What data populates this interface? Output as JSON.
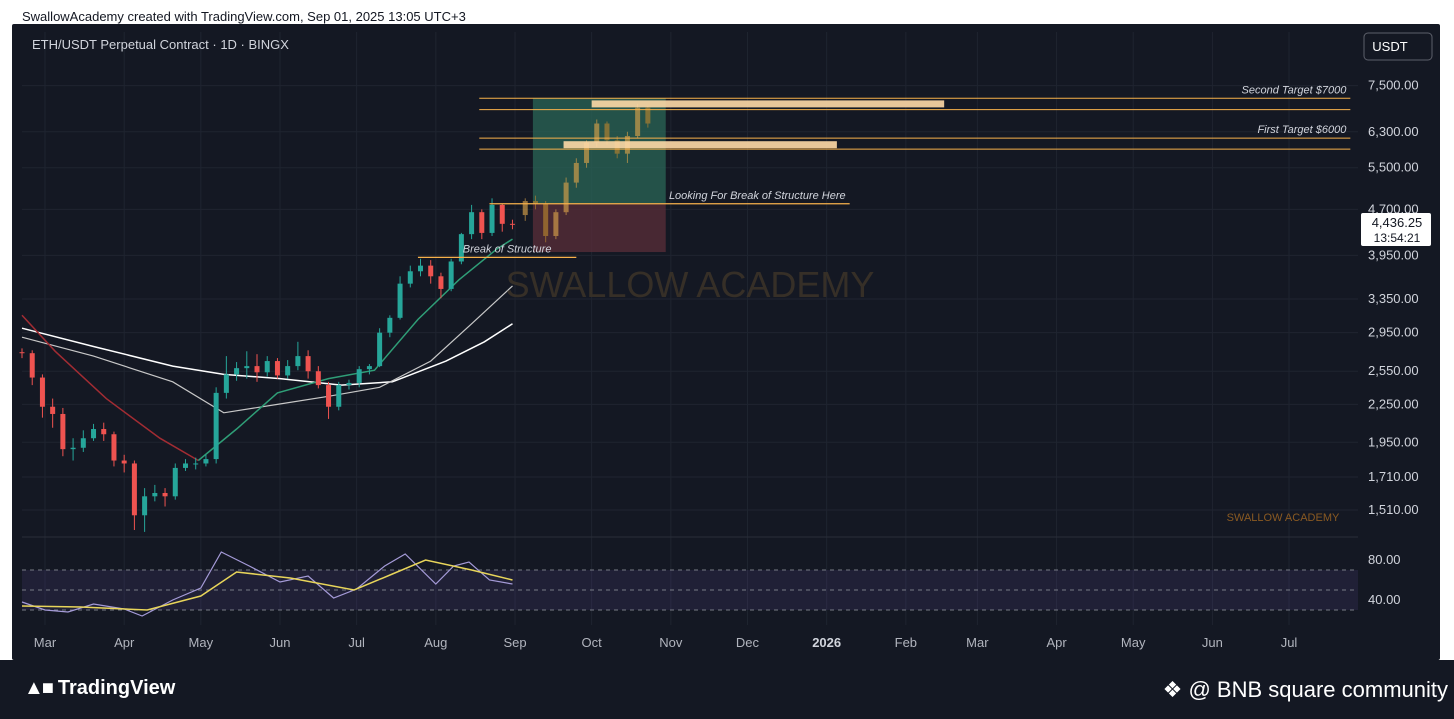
{
  "header": {
    "credit": "SwallowAcademy created with TradingView.com, Sep 01, 2025 13:05 UTC+3"
  },
  "chart_data": {
    "type": "candlestick",
    "title": "ETH/USDT Perpetual Contract · 1D · BINGX",
    "currency": "USDT",
    "y_scale": "log",
    "ylim": [
      1400,
      8200
    ],
    "y_ticks": [
      "7,500.00",
      "6,300.00",
      "5,500.00",
      "4,700.00",
      "3,950.00",
      "3,350.00",
      "2,950.00",
      "2,550.00",
      "2,250.00",
      "1,950.00",
      "1,710.00",
      "1,510.00"
    ],
    "x_ticks": [
      "Mar",
      "Apr",
      "May",
      "Jun",
      "Jul",
      "Aug",
      "Sep",
      "Oct",
      "Nov",
      "Dec",
      "2026",
      "Feb",
      "Mar",
      "Apr",
      "May",
      "Jun",
      "Jul"
    ],
    "x_range": [
      "2025-02-20",
      "2026-07-28"
    ],
    "last_price": "4,436.25",
    "countdown": "13:54:21",
    "watermark": "SWALLOW ACADEMY",
    "watermark_small": "SWALLOW ACADEMY",
    "candles": [
      [
        "2025-02-20",
        2740,
        2780,
        2680,
        2730
      ],
      [
        "2025-02-24",
        2730,
        2760,
        2420,
        2490
      ],
      [
        "2025-02-28",
        2490,
        2520,
        2140,
        2230
      ],
      [
        "2025-03-04",
        2230,
        2300,
        2060,
        2170
      ],
      [
        "2025-03-08",
        2170,
        2220,
        1850,
        1900
      ],
      [
        "2025-03-12",
        1900,
        1980,
        1820,
        1910
      ],
      [
        "2025-03-16",
        1910,
        2040,
        1880,
        1980
      ],
      [
        "2025-03-20",
        1980,
        2090,
        1960,
        2050
      ],
      [
        "2025-03-24",
        2050,
        2100,
        1960,
        2010
      ],
      [
        "2025-03-28",
        2010,
        2030,
        1780,
        1820
      ],
      [
        "2025-04-01",
        1820,
        1860,
        1740,
        1800
      ],
      [
        "2025-04-05",
        1800,
        1820,
        1400,
        1480
      ],
      [
        "2025-04-09",
        1480,
        1640,
        1390,
        1590
      ],
      [
        "2025-04-13",
        1590,
        1660,
        1560,
        1610
      ],
      [
        "2025-04-17",
        1610,
        1640,
        1530,
        1590
      ],
      [
        "2025-04-21",
        1590,
        1800,
        1570,
        1770
      ],
      [
        "2025-04-25",
        1770,
        1830,
        1750,
        1800
      ],
      [
        "2025-04-29",
        1800,
        1840,
        1760,
        1800
      ],
      [
        "2025-05-03",
        1800,
        1860,
        1780,
        1830
      ],
      [
        "2025-05-07",
        1830,
        2400,
        1800,
        2350
      ],
      [
        "2025-05-11",
        2350,
        2700,
        2300,
        2520
      ],
      [
        "2025-05-15",
        2520,
        2640,
        2460,
        2580
      ],
      [
        "2025-05-19",
        2580,
        2750,
        2480,
        2600
      ],
      [
        "2025-05-23",
        2600,
        2720,
        2450,
        2540
      ],
      [
        "2025-05-27",
        2540,
        2700,
        2500,
        2650
      ],
      [
        "2025-05-31",
        2650,
        2680,
        2480,
        2510
      ],
      [
        "2025-06-04",
        2510,
        2660,
        2480,
        2600
      ],
      [
        "2025-06-08",
        2600,
        2850,
        2560,
        2700
      ],
      [
        "2025-06-12",
        2700,
        2760,
        2480,
        2550
      ],
      [
        "2025-06-16",
        2550,
        2600,
        2390,
        2420
      ],
      [
        "2025-06-20",
        2420,
        2450,
        2130,
        2230
      ],
      [
        "2025-06-24",
        2230,
        2450,
        2200,
        2420
      ],
      [
        "2025-06-28",
        2420,
        2470,
        2380,
        2440
      ],
      [
        "2025-07-02",
        2440,
        2600,
        2400,
        2570
      ],
      [
        "2025-07-06",
        2570,
        2620,
        2520,
        2600
      ],
      [
        "2025-07-10",
        2600,
        3000,
        2590,
        2950
      ],
      [
        "2025-07-14",
        2950,
        3150,
        2900,
        3120
      ],
      [
        "2025-07-18",
        3120,
        3650,
        3100,
        3550
      ],
      [
        "2025-07-22",
        3550,
        3800,
        3500,
        3720
      ],
      [
        "2025-07-26",
        3720,
        3900,
        3650,
        3800
      ],
      [
        "2025-07-30",
        3800,
        3880,
        3550,
        3650
      ],
      [
        "2025-08-03",
        3650,
        3700,
        3360,
        3480
      ],
      [
        "2025-08-07",
        3480,
        3900,
        3450,
        3860
      ],
      [
        "2025-08-11",
        3860,
        4300,
        3820,
        4280
      ],
      [
        "2025-08-15",
        4280,
        4780,
        4200,
        4650
      ],
      [
        "2025-08-19",
        4650,
        4700,
        4200,
        4300
      ],
      [
        "2025-08-23",
        4300,
        4900,
        4250,
        4780
      ],
      [
        "2025-08-27",
        4780,
        4800,
        4320,
        4450
      ],
      [
        "2025-08-31",
        4450,
        4520,
        4360,
        4436
      ]
    ],
    "ma_short": [
      [
        "2025-02-20",
        3150
      ],
      [
        "2025-03-05",
        2750
      ],
      [
        "2025-03-25",
        2300
      ],
      [
        "2025-04-15",
        1980
      ],
      [
        "2025-04-30",
        1820
      ],
      [
        "2025-05-15",
        2050
      ],
      [
        "2025-05-31",
        2350
      ],
      [
        "2025-06-20",
        2480
      ],
      [
        "2025-07-08",
        2560
      ],
      [
        "2025-07-25",
        3100
      ],
      [
        "2025-08-10",
        3600
      ],
      [
        "2025-08-25",
        4050
      ],
      [
        "2025-08-31",
        4200
      ]
    ],
    "ma_mid": [
      [
        "2025-02-20",
        2900
      ],
      [
        "2025-03-20",
        2700
      ],
      [
        "2025-04-20",
        2450
      ],
      [
        "2025-05-10",
        2180
      ],
      [
        "2025-05-31",
        2250
      ],
      [
        "2025-06-20",
        2320
      ],
      [
        "2025-07-10",
        2400
      ],
      [
        "2025-07-30",
        2650
      ],
      [
        "2025-08-15",
        3050
      ],
      [
        "2025-08-31",
        3520
      ]
    ],
    "ma_long": [
      [
        "2025-02-20",
        3000
      ],
      [
        "2025-03-20",
        2800
      ],
      [
        "2025-04-20",
        2600
      ],
      [
        "2025-05-10",
        2520
      ],
      [
        "2025-06-01",
        2480
      ],
      [
        "2025-06-25",
        2420
      ],
      [
        "2025-07-15",
        2450
      ],
      [
        "2025-08-05",
        2650
      ],
      [
        "2025-08-20",
        2850
      ],
      [
        "2025-08-31",
        3050
      ]
    ],
    "annotations": [
      {
        "text": "Second Target $7000",
        "value": 7000,
        "band": [
          6850,
          7150
        ],
        "x_start": "2025-08-18",
        "x_end": "2026-07-25"
      },
      {
        "text": "First Target $6000",
        "value": 6000,
        "band": [
          5900,
          6150
        ],
        "x_start": "2025-08-18",
        "x_end": "2026-07-25"
      },
      {
        "text": "Looking For Break of Structure Here",
        "value": 4800,
        "x_start": "2025-08-22",
        "x_end": "2026-01-10"
      },
      {
        "text": "Break of Structure",
        "value": 3920,
        "x_start": "2025-07-25",
        "x_end": "2025-09-25"
      }
    ],
    "position": {
      "x_start": "2025-09-08",
      "x_end": "2025-10-30",
      "entry": 4800,
      "target": 7150,
      "stop": 4000
    },
    "projection": [
      [
        "2025-09-05",
        4600,
        4900,
        4500,
        4850
      ],
      [
        "2025-09-09",
        4850,
        4950,
        4700,
        4800
      ],
      [
        "2025-09-13",
        4800,
        4850,
        4150,
        4250
      ],
      [
        "2025-09-17",
        4250,
        4700,
        4200,
        4650
      ],
      [
        "2025-09-21",
        4650,
        5300,
        4600,
        5200
      ],
      [
        "2025-09-25",
        5200,
        5700,
        5100,
        5600
      ],
      [
        "2025-09-29",
        5600,
        6100,
        5500,
        6050
      ],
      [
        "2025-10-03",
        6050,
        6600,
        5950,
        6500
      ],
      [
        "2025-10-07",
        6500,
        6550,
        6000,
        6100
      ],
      [
        "2025-10-11",
        6100,
        6200,
        5700,
        5800
      ],
      [
        "2025-10-15",
        5800,
        6300,
        5600,
        6200
      ],
      [
        "2025-10-19",
        6200,
        7000,
        6150,
        6900
      ],
      [
        "2025-10-23",
        6900,
        6950,
        6400,
        6500
      ]
    ],
    "rsi": {
      "y_ticks": [
        "80.00",
        "40.00"
      ],
      "band": [
        30,
        70
      ],
      "rsi_values": [
        [
          "2025-02-20",
          38
        ],
        [
          "2025-03-01",
          30
        ],
        [
          "2025-03-10",
          28
        ],
        [
          "2025-03-20",
          36
        ],
        [
          "2025-04-01",
          31
        ],
        [
          "2025-04-08",
          24
        ],
        [
          "2025-04-20",
          40
        ],
        [
          "2025-05-01",
          52
        ],
        [
          "2025-05-09",
          88
        ],
        [
          "2025-05-20",
          74
        ],
        [
          "2025-06-01",
          58
        ],
        [
          "2025-06-12",
          64
        ],
        [
          "2025-06-22",
          42
        ],
        [
          "2025-07-01",
          51
        ],
        [
          "2025-07-12",
          74
        ],
        [
          "2025-07-20",
          86
        ],
        [
          "2025-08-01",
          56
        ],
        [
          "2025-08-08",
          74
        ],
        [
          "2025-08-14",
          78
        ],
        [
          "2025-08-22",
          60
        ],
        [
          "2025-08-31",
          56
        ]
      ],
      "signal_values": [
        [
          "2025-02-20",
          34
        ],
        [
          "2025-03-15",
          33
        ],
        [
          "2025-04-10",
          30
        ],
        [
          "2025-05-01",
          44
        ],
        [
          "2025-05-15",
          68
        ],
        [
          "2025-06-05",
          62
        ],
        [
          "2025-06-30",
          50
        ],
        [
          "2025-07-15",
          66
        ],
        [
          "2025-07-28",
          80
        ],
        [
          "2025-08-15",
          70
        ],
        [
          "2025-08-31",
          60
        ]
      ]
    }
  },
  "footer": {
    "tradingview_logo": "TradingView",
    "community": "@ BNB square community"
  },
  "colors": {
    "up": "#26a69a",
    "down": "#ef5350",
    "annotation": "#f7b14b",
    "target_band": "#ffd9a6",
    "profit_zone": "#2a6657",
    "loss_zone": "#5a2e3a",
    "rsi": "#a59bd8",
    "rsi_signal": "#e8d55a",
    "ma_short": "#2f9e77",
    "ma_short_early": "#a22c33",
    "ma_mid": "#c8c8c8",
    "ma_long": "#ffffff"
  }
}
